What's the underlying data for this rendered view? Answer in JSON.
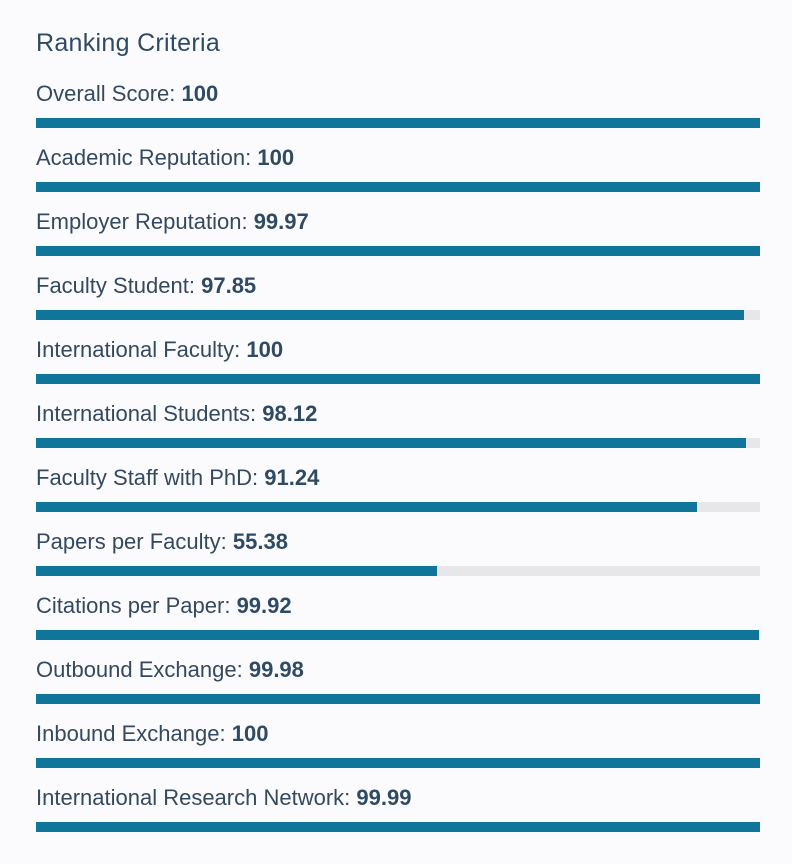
{
  "title": "Ranking Criteria",
  "colors": {
    "bar": "#0f759a",
    "track": "#e7e7ea",
    "text": "#34495e"
  },
  "chart_data": {
    "type": "bar",
    "orientation": "horizontal",
    "title": "Ranking Criteria",
    "xlim": [
      0,
      100
    ],
    "grid": false,
    "categories": [
      "Overall Score",
      "Academic Reputation",
      "Employer Reputation",
      "Faculty Student",
      "International Faculty",
      "International Students",
      "Faculty Staff with PhD",
      "Papers per Faculty",
      "Citations per Paper",
      "Outbound Exchange",
      "Inbound Exchange",
      "International Research Network"
    ],
    "values": [
      100,
      100,
      99.97,
      97.85,
      100,
      98.12,
      91.24,
      55.38,
      99.92,
      99.98,
      100,
      99.99
    ],
    "value_labels": [
      "100",
      "100",
      "99.97",
      "97.85",
      "100",
      "98.12",
      "91.24",
      "55.38",
      "99.92",
      "99.98",
      "100",
      "99.99"
    ]
  }
}
